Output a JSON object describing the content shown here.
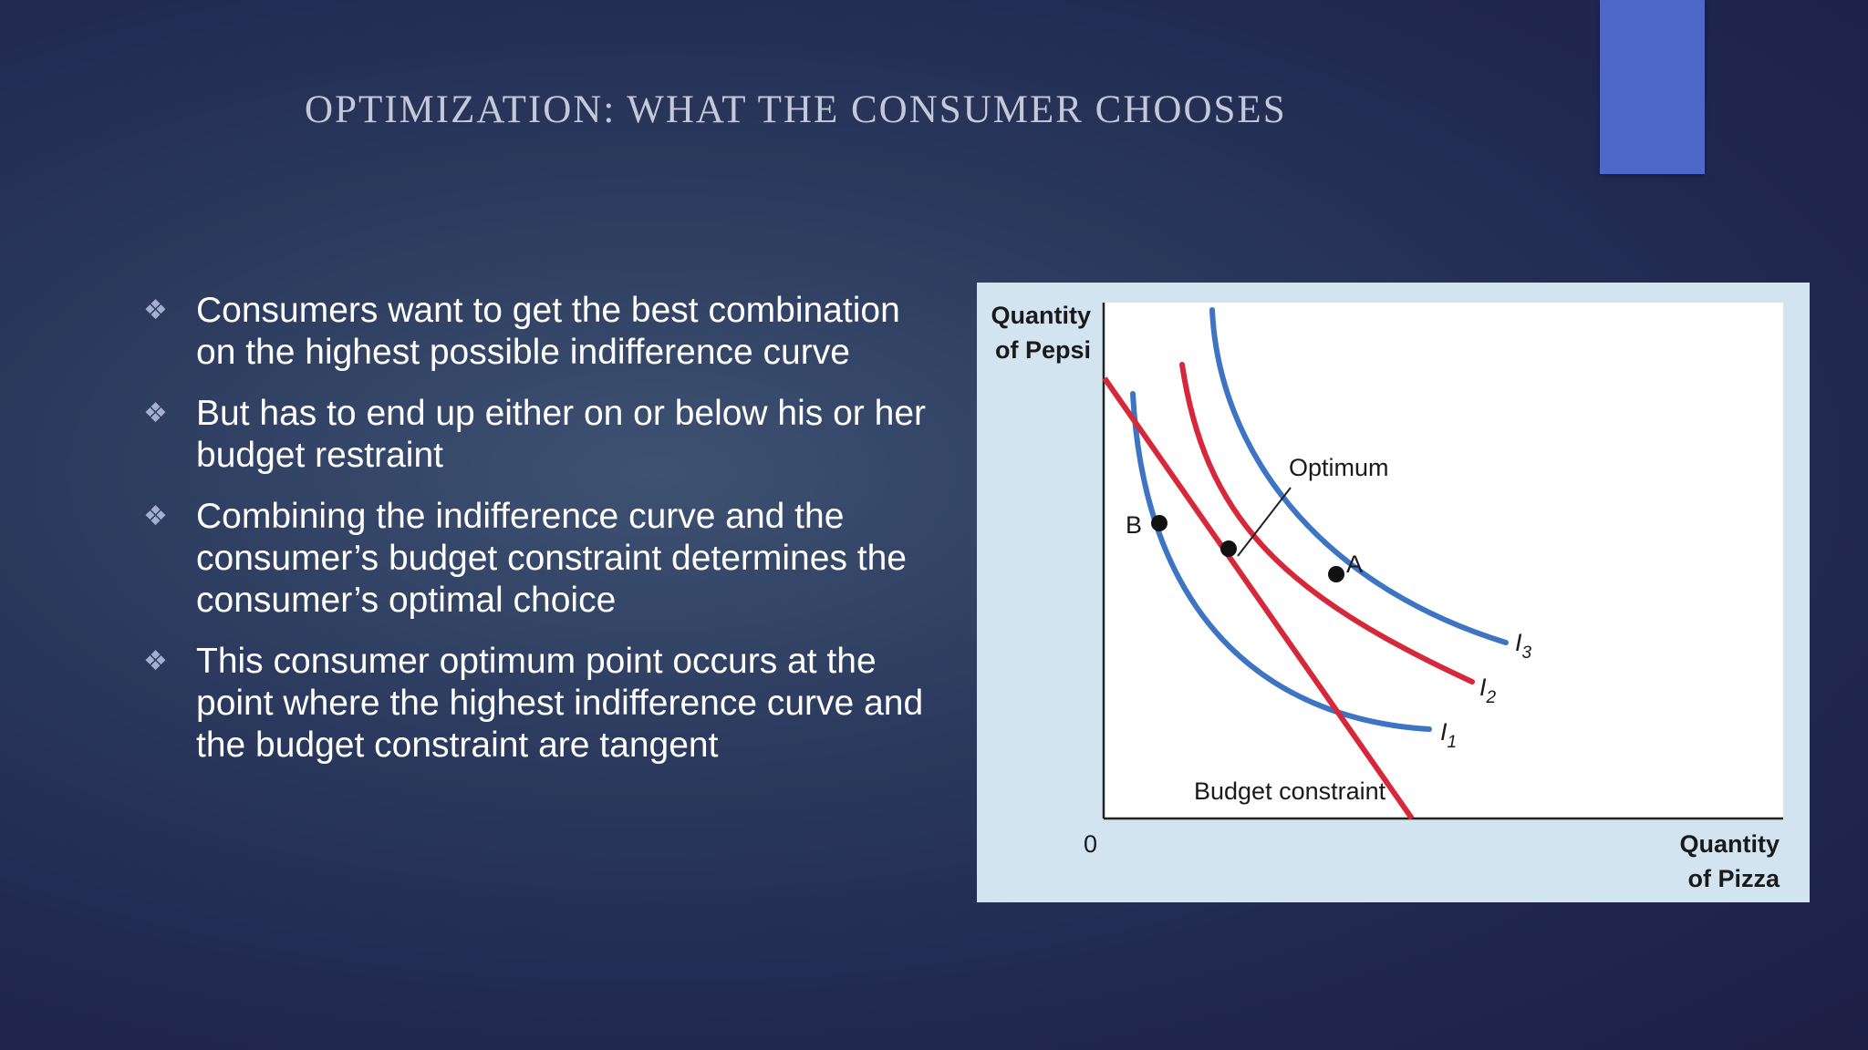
{
  "slide": {
    "title": "OPTIMIZATION: WHAT THE CONSUMER CHOOSES",
    "accent_color": "#4e68c9"
  },
  "bullets": [
    {
      "icon": "diamond-bullet-icon",
      "text": "Consumers want to get the best combination on the highest possible indifference curve"
    },
    {
      "icon": "diamond-bullet-icon",
      "text": "But has to end up either on or below his or her budget restraint"
    },
    {
      "icon": "diamond-bullet-icon",
      "text": "Combining the indifference curve and the consumer’s budget constraint determines the consumer’s optimal choice"
    },
    {
      "icon": "diamond-bullet-icon",
      "text": "This consumer optimum point occurs at the point where the highest indifference curve and the budget constraint are tangent"
    }
  ],
  "diagram": {
    "y_axis_label": [
      "Quantity",
      "of Pepsi"
    ],
    "x_axis_label": [
      "Quantity",
      "of Pizza"
    ],
    "origin_label": "0",
    "budget_label": "Budget constraint",
    "optimum_label": "Optimum",
    "point_a_label": "A",
    "point_b_label": "B",
    "curves": [
      {
        "name": "I",
        "sub": "1",
        "color": "#3d74c4"
      },
      {
        "name": "I",
        "sub": "2",
        "color": "#d6283a"
      },
      {
        "name": "I",
        "sub": "3",
        "color": "#3d74c4"
      }
    ],
    "budget_color": "#d6283a",
    "indifference_color": "#3d74c4"
  }
}
